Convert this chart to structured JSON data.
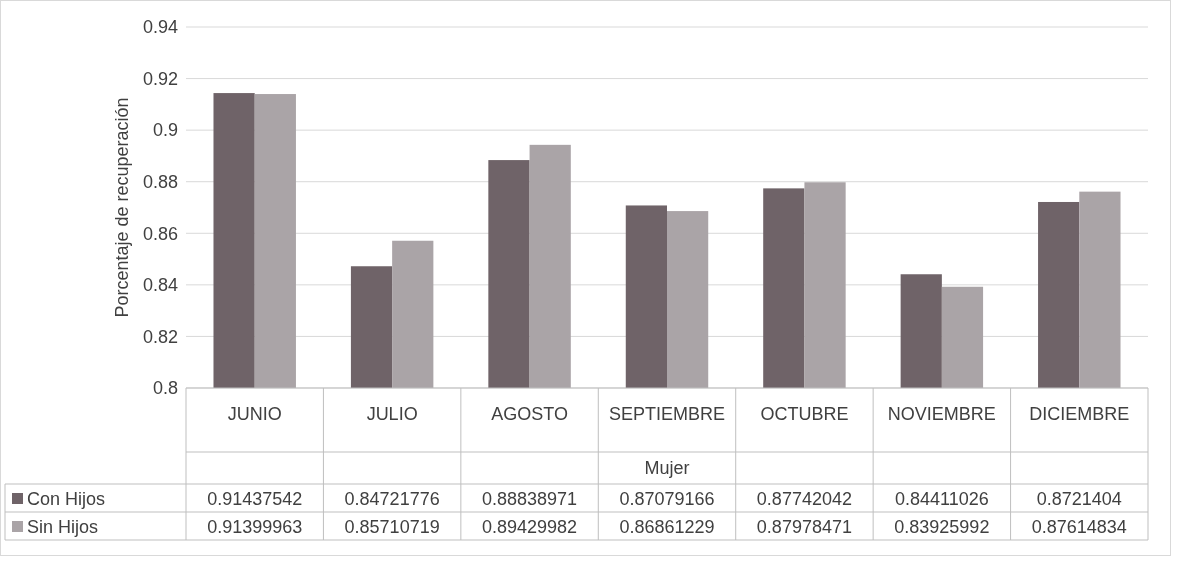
{
  "chart_data": {
    "type": "bar",
    "ylabel": "Porcentaje de recuperación",
    "xlabel": "Mujer",
    "categories": [
      "JUNIO",
      "JULIO",
      "AGOSTO",
      "SEPTIEMBRE",
      "OCTUBRE",
      "NOVIEMBRE",
      "DICIEMBRE"
    ],
    "series": [
      {
        "name": "Con Hijos",
        "color": "#6f6368",
        "values": [
          0.91437542,
          0.84721776,
          0.88838971,
          0.87079166,
          0.87742042,
          0.84411026,
          0.8721404
        ]
      },
      {
        "name": "Sin Hijos",
        "color": "#aaa4a7",
        "values": [
          0.91399963,
          0.85710719,
          0.89429982,
          0.86861229,
          0.87978471,
          0.83925992,
          0.87614834
        ]
      }
    ],
    "ylim": [
      0.8,
      0.94
    ],
    "yticks": [
      0.8,
      0.82,
      0.84,
      0.86,
      0.88,
      0.9,
      0.92,
      0.94
    ],
    "grid": "y",
    "legend": "bottom",
    "data_labels": true
  }
}
